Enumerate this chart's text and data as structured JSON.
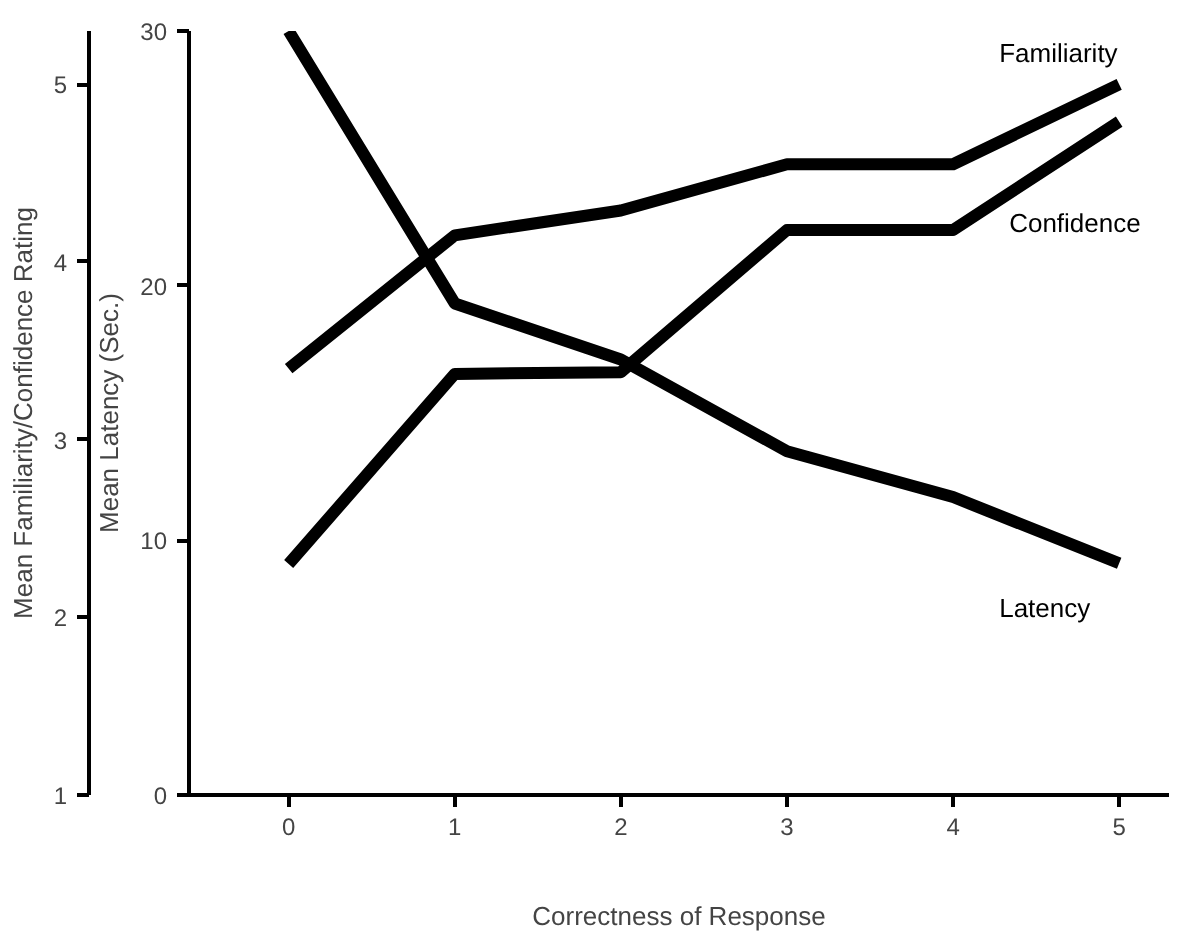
{
  "chart_data": {
    "type": "line",
    "xlabel": "Correctness of Response",
    "ylabel": "Mean Latency (Sec.)",
    "y2label": "Mean Familiarity/Confidence Rating",
    "x": [
      0,
      1,
      2,
      3,
      4,
      5
    ],
    "xlim": [
      -0.6,
      5.3
    ],
    "xticks": [
      0,
      1,
      2,
      3,
      4,
      5
    ],
    "ylim": [
      0,
      30
    ],
    "yticks": [
      0,
      10,
      20,
      30
    ],
    "y2lim": [
      1,
      5.3
    ],
    "y2ticks": [
      1,
      2,
      3,
      4,
      5
    ],
    "series": [
      {
        "name": "Familiarity",
        "color": "#000000",
        "axis": "y2",
        "values": [
          3.4,
          4.15,
          4.29,
          4.55,
          4.55,
          5.0
        ]
      },
      {
        "name": "Confidence",
        "color": "#000000",
        "axis": "y2",
        "values": [
          2.3,
          3.37,
          3.38,
          4.18,
          4.18,
          4.79
        ]
      },
      {
        "name": "Latency",
        "color": "#000000",
        "axis": "y",
        "values": [
          30,
          19.3,
          17.1,
          13.5,
          11.7,
          9.1
        ]
      }
    ],
    "grid": false,
    "marker": "none",
    "line_style": "solid"
  }
}
